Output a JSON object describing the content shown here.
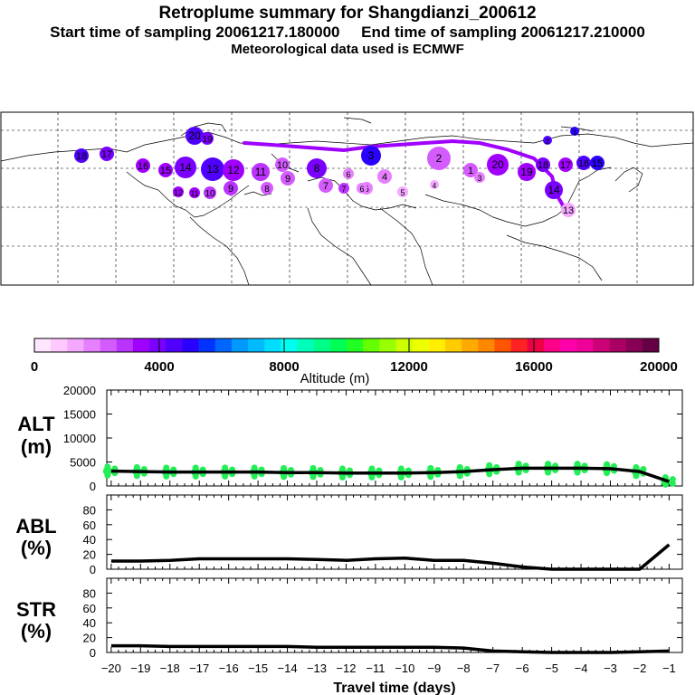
{
  "header": {
    "title": "Retroplume summary for Shangdianzi_200612",
    "start_label": "Start time of sampling 20061217.180000",
    "end_label": "End time of sampling 20061217.210000",
    "met_label": "Meteorological data used is ECMWF"
  },
  "map": {
    "plume_labels": [
      "20",
      "19",
      "18",
      "17",
      "16",
      "15",
      "14",
      "13",
      "12",
      "11",
      "10",
      "9",
      "8",
      "7",
      "6",
      "5",
      "4",
      "3",
      "2",
      "1"
    ]
  },
  "colorbar": {
    "tick_labels": [
      "0",
      "4000",
      "8000",
      "12000",
      "16000",
      "20000"
    ],
    "label": "Altitude (m)",
    "colors": [
      "#ffe6ff",
      "#ffc8ff",
      "#f4a8ff",
      "#e680ff",
      "#d45cff",
      "#bb33ff",
      "#a000ff",
      "#7a00ff",
      "#5000ff",
      "#2a00ff",
      "#0033ff",
      "#0066ff",
      "#0099ff",
      "#00bbff",
      "#00ddff",
      "#00ffee",
      "#00ffbb",
      "#00ff88",
      "#00ff55",
      "#22ff22",
      "#66ff00",
      "#99ff00",
      "#ccff00",
      "#eeff00",
      "#ffee00",
      "#ffcc00",
      "#ffaa00",
      "#ff8800",
      "#ff5500",
      "#ff2222",
      "#ee0044",
      "#ff0088",
      "#ff00aa",
      "#ee0099",
      "#cc0077",
      "#aa0066",
      "#880055",
      "#660044"
    ]
  },
  "chart_data": [
    {
      "type": "line",
      "name": "ALT",
      "ylabel": "ALT\n(m)",
      "ylabel_line1": "ALT",
      "ylabel_line2": "(m)",
      "xlabel": "Travel time (days)",
      "x": [
        -20,
        -19,
        -18,
        -17,
        -16,
        -15,
        -14,
        -13,
        -12,
        -11,
        -10,
        -9,
        -8,
        -7,
        -6,
        -5,
        -4,
        -3,
        -2,
        -1
      ],
      "values": [
        3100,
        3000,
        2900,
        2900,
        2900,
        2900,
        2800,
        2800,
        2700,
        2700,
        2700,
        2800,
        3000,
        3400,
        3700,
        3700,
        3700,
        3600,
        3000,
        900
      ],
      "ylim": [
        0,
        20000
      ],
      "yticks": [
        "0",
        "5000",
        "10000",
        "15000",
        "20000"
      ],
      "scatter_color": "#22ee55"
    },
    {
      "type": "line",
      "name": "ABL",
      "ylabel_line1": "ABL",
      "ylabel_line2": "(%)",
      "x": [
        -20,
        -19,
        -18,
        -17,
        -16,
        -15,
        -14,
        -13,
        -12,
        -11,
        -10,
        -9,
        -8,
        -7,
        -6,
        -5,
        -4,
        -3,
        -2,
        -1
      ],
      "values": [
        11,
        11,
        12,
        14,
        14,
        14,
        14,
        13,
        12,
        14,
        15,
        12,
        12,
        8,
        3,
        0,
        0,
        0,
        0,
        33
      ],
      "ylim": [
        0,
        100
      ],
      "yticks": [
        "0",
        "20",
        "40",
        "60",
        "80"
      ]
    },
    {
      "type": "line",
      "name": "STR",
      "ylabel_line1": "STR",
      "ylabel_line2": "(%)",
      "x": [
        -20,
        -19,
        -18,
        -17,
        -16,
        -15,
        -14,
        -13,
        -12,
        -11,
        -10,
        -9,
        -8,
        -7,
        -6,
        -5,
        -4,
        -3,
        -2,
        -1
      ],
      "values": [
        9,
        9,
        8,
        8,
        8,
        8,
        8,
        7,
        7,
        7,
        7,
        7,
        6,
        2,
        1,
        0,
        0,
        0,
        1,
        2
      ],
      "ylim": [
        0,
        100
      ],
      "yticks": [
        "0",
        "20",
        "40",
        "60",
        "80"
      ],
      "xtick_labels": [
        "−20",
        "−19",
        "−18",
        "−17",
        "−16",
        "−15",
        "−14",
        "−13",
        "−12",
        "−11",
        "−10",
        "−9",
        "−8",
        "−7",
        "−6",
        "−5",
        "−4",
        "−3",
        "−2",
        "−1"
      ]
    }
  ]
}
